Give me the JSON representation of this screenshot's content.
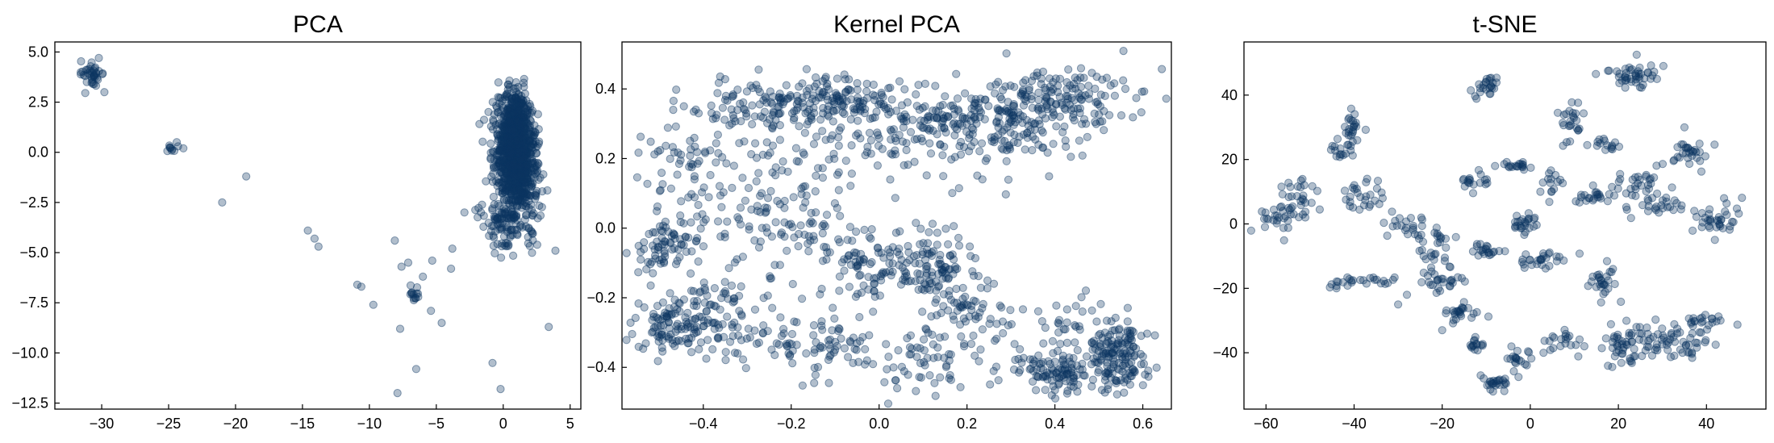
{
  "figure": {
    "point_color": "#0b3561",
    "point_fill_opacity": 0.32,
    "point_stroke_opacity": 0.45
  },
  "chart_data": [
    {
      "type": "scatter",
      "title": "PCA",
      "xlabel": "",
      "ylabel": "",
      "xlim": [
        -33.5,
        5.8
      ],
      "ylim": [
        -12.8,
        5.5
      ],
      "xticks": [
        -30,
        -25,
        -20,
        -15,
        -10,
        -5,
        0,
        5
      ],
      "yticks": [
        -12.5,
        -10.0,
        -7.5,
        -5.0,
        -2.5,
        0.0,
        2.5,
        5.0
      ],
      "grid": false,
      "legend": "none",
      "clusters": [
        {
          "center": [
            0.9,
            -0.3
          ],
          "spread": [
            0.75,
            1.45
          ],
          "count": 900,
          "rotation": 0.22
        },
        {
          "center": [
            1.2,
            1.4
          ],
          "spread": [
            0.55,
            0.85
          ],
          "count": 250,
          "rotation": 0.1
        },
        {
          "center": [
            -0.2,
            -3.3
          ],
          "spread": [
            0.9,
            0.9
          ],
          "count": 90,
          "rotation": 0
        },
        {
          "center": [
            -30.8,
            4.0
          ],
          "spread": [
            0.45,
            0.35
          ],
          "count": 40,
          "rotation": -0.5
        },
        {
          "center": [
            -24.6,
            0.3
          ],
          "spread": [
            0.35,
            0.12
          ],
          "count": 10,
          "rotation": 0
        },
        {
          "center": [
            -6.6,
            -7.1
          ],
          "spread": [
            0.22,
            0.2
          ],
          "count": 14,
          "rotation": 0
        }
      ],
      "points": [
        [
          -29.8,
          3.0
        ],
        [
          -23.9,
          0.2
        ],
        [
          -21.0,
          -2.5
        ],
        [
          -19.2,
          -1.2
        ],
        [
          -14.6,
          -3.9
        ],
        [
          -14.1,
          -4.3
        ],
        [
          -13.8,
          -4.7
        ],
        [
          -10.9,
          -6.6
        ],
        [
          -10.6,
          -6.7
        ],
        [
          -9.7,
          -7.6
        ],
        [
          -8.1,
          -4.4
        ],
        [
          -7.7,
          -8.8
        ],
        [
          -7.6,
          -5.7
        ],
        [
          -7.1,
          -5.5
        ],
        [
          -7.9,
          -12.0
        ],
        [
          -6.5,
          -10.8
        ],
        [
          -6.0,
          -6.2
        ],
        [
          -5.4,
          -7.9
        ],
        [
          -5.3,
          -5.4
        ],
        [
          -4.6,
          -8.5
        ],
        [
          -3.9,
          -5.8
        ],
        [
          -3.8,
          -4.8
        ],
        [
          -0.8,
          -10.5
        ],
        [
          -0.2,
          -11.8
        ],
        [
          3.4,
          -8.7
        ],
        [
          3.9,
          -4.9
        ],
        [
          3.0,
          -1.1
        ],
        [
          2.6,
          1.9
        ],
        [
          -2.9,
          -3.0
        ],
        [
          3.3,
          -1.9
        ]
      ]
    },
    {
      "type": "scatter",
      "title": "Kernel PCA",
      "xlabel": "",
      "ylabel": "",
      "xlim": [
        -0.585,
        0.665
      ],
      "ylim": [
        -0.52,
        0.535
      ],
      "xticks": [
        -0.4,
        -0.2,
        0.0,
        0.2,
        0.4,
        0.6
      ],
      "yticks": [
        -0.4,
        -0.2,
        0.0,
        0.2,
        0.4
      ],
      "grid": false,
      "legend": "none",
      "clusters": [
        {
          "center": [
            -0.23,
            0.35
          ],
          "spread": [
            0.1,
            0.04
          ],
          "count": 130,
          "rotation": 0
        },
        {
          "center": [
            -0.07,
            0.37
          ],
          "spread": [
            0.05,
            0.035
          ],
          "count": 80,
          "rotation": 0
        },
        {
          "center": [
            0.12,
            0.32
          ],
          "spread": [
            0.1,
            0.045
          ],
          "count": 110,
          "rotation": 0
        },
        {
          "center": [
            0.29,
            0.31
          ],
          "spread": [
            0.09,
            0.06
          ],
          "count": 150,
          "rotation": 0
        },
        {
          "center": [
            0.45,
            0.38
          ],
          "spread": [
            0.08,
            0.04
          ],
          "count": 110,
          "rotation": 0
        },
        {
          "center": [
            0.0,
            0.22
          ],
          "spread": [
            0.2,
            0.05
          ],
          "count": 110,
          "rotation": 0
        },
        {
          "center": [
            -0.44,
            0.12
          ],
          "spread": [
            0.05,
            0.1
          ],
          "count": 60,
          "rotation": 0
        },
        {
          "center": [
            -0.5,
            -0.05
          ],
          "spread": [
            0.04,
            0.04
          ],
          "count": 60,
          "rotation": 0
        },
        {
          "center": [
            -0.3,
            0.05
          ],
          "spread": [
            0.1,
            0.09
          ],
          "count": 90,
          "rotation": 0
        },
        {
          "center": [
            -0.15,
            -0.02
          ],
          "spread": [
            0.06,
            0.05
          ],
          "count": 40,
          "rotation": 0
        },
        {
          "center": [
            -0.03,
            -0.14
          ],
          "spread": [
            0.05,
            0.05
          ],
          "count": 60,
          "rotation": 0
        },
        {
          "center": [
            0.12,
            -0.11
          ],
          "spread": [
            0.06,
            0.05
          ],
          "count": 120,
          "rotation": 0
        },
        {
          "center": [
            0.2,
            -0.24
          ],
          "spread": [
            0.07,
            0.05
          ],
          "count": 60,
          "rotation": 0
        },
        {
          "center": [
            -0.35,
            -0.2
          ],
          "spread": [
            0.06,
            0.06
          ],
          "count": 60,
          "rotation": 0
        },
        {
          "center": [
            -0.46,
            -0.28
          ],
          "spread": [
            0.05,
            0.04
          ],
          "count": 110,
          "rotation": 0
        },
        {
          "center": [
            -0.2,
            -0.33
          ],
          "spread": [
            0.14,
            0.04
          ],
          "count": 90,
          "rotation": 0
        },
        {
          "center": [
            0.12,
            -0.38
          ],
          "spread": [
            0.13,
            0.05
          ],
          "count": 80,
          "rotation": 0
        },
        {
          "center": [
            0.4,
            -0.41
          ],
          "spread": [
            0.05,
            0.035
          ],
          "count": 100,
          "rotation": 0
        },
        {
          "center": [
            0.55,
            -0.37
          ],
          "spread": [
            0.035,
            0.05
          ],
          "count": 150,
          "rotation": 0
        },
        {
          "center": [
            0.45,
            -0.28
          ],
          "spread": [
            0.05,
            0.04
          ],
          "count": 30,
          "rotation": 0
        }
      ],
      "points": []
    },
    {
      "type": "scatter",
      "title": "t-SNE",
      "xlabel": "",
      "ylabel": "",
      "xlim": [
        -65,
        53.5
      ],
      "ylim": [
        -57.5,
        56.5
      ],
      "xticks": [
        -60,
        -40,
        -20,
        0,
        20,
        40
      ],
      "yticks": [
        -40,
        -20,
        0,
        20,
        40
      ],
      "grid": false,
      "legend": "none",
      "clusters": [
        {
          "center": [
            -57,
            2
          ],
          "spread": [
            2.5,
            2.5
          ],
          "count": 30,
          "rotation": 0
        },
        {
          "center": [
            -53,
            8
          ],
          "spread": [
            1.8,
            3.5
          ],
          "count": 25,
          "rotation": 0
        },
        {
          "center": [
            -41,
            29
          ],
          "spread": [
            1.5,
            2.5
          ],
          "count": 25,
          "rotation": 0
        },
        {
          "center": [
            -43,
            23
          ],
          "spread": [
            1.2,
            1.5
          ],
          "count": 15,
          "rotation": 0
        },
        {
          "center": [
            -38,
            8
          ],
          "spread": [
            2.5,
            3.0
          ],
          "count": 28,
          "rotation": 0
        },
        {
          "center": [
            -42,
            -18
          ],
          "spread": [
            2.0,
            1.0
          ],
          "count": 15,
          "rotation": 0
        },
        {
          "center": [
            -20,
            -18
          ],
          "spread": [
            2.5,
            2.5
          ],
          "count": 30,
          "rotation": 0
        },
        {
          "center": [
            -16,
            -28
          ],
          "spread": [
            2.2,
            2.5
          ],
          "count": 25,
          "rotation": 0
        },
        {
          "center": [
            -22,
            -5
          ],
          "spread": [
            2.5,
            3.0
          ],
          "count": 25,
          "rotation": 0
        },
        {
          "center": [
            -10,
            -8
          ],
          "spread": [
            2.0,
            1.5
          ],
          "count": 20,
          "rotation": 0
        },
        {
          "center": [
            -10,
            42
          ],
          "spread": [
            1.5,
            2.5
          ],
          "count": 25,
          "rotation": 0
        },
        {
          "center": [
            -13,
            13
          ],
          "spread": [
            1.8,
            1.5
          ],
          "count": 18,
          "rotation": 0
        },
        {
          "center": [
            -3,
            18
          ],
          "spread": [
            2.0,
            1.0
          ],
          "count": 18,
          "rotation": 0
        },
        {
          "center": [
            -28,
            -2
          ],
          "spread": [
            2.5,
            2.0
          ],
          "count": 20,
          "rotation": 0
        },
        {
          "center": [
            -33,
            -18
          ],
          "spread": [
            2.0,
            1.0
          ],
          "count": 10,
          "rotation": 0
        },
        {
          "center": [
            -13,
            -37
          ],
          "spread": [
            1.5,
            1.5
          ],
          "count": 15,
          "rotation": 0
        },
        {
          "center": [
            -8,
            -49
          ],
          "spread": [
            2.0,
            1.5
          ],
          "count": 25,
          "rotation": 0
        },
        {
          "center": [
            -3,
            -42
          ],
          "spread": [
            1.5,
            2.5
          ],
          "count": 20,
          "rotation": 0
        },
        {
          "center": [
            -1,
            0
          ],
          "spread": [
            1.5,
            1.5
          ],
          "count": 25,
          "rotation": 0
        },
        {
          "center": [
            2,
            -11
          ],
          "spread": [
            3.5,
            1.2
          ],
          "count": 28,
          "rotation": 0
        },
        {
          "center": [
            9,
            32
          ],
          "spread": [
            1.5,
            3.5
          ],
          "count": 25,
          "rotation": 0
        },
        {
          "center": [
            17,
            25
          ],
          "spread": [
            2.0,
            1.0
          ],
          "count": 15,
          "rotation": 0
        },
        {
          "center": [
            14,
            9
          ],
          "spread": [
            3.0,
            1.5
          ],
          "count": 22,
          "rotation": 0
        },
        {
          "center": [
            17,
            -18
          ],
          "spread": [
            1.8,
            3.0
          ],
          "count": 28,
          "rotation": 0
        },
        {
          "center": [
            21,
            -37
          ],
          "spread": [
            4.0,
            3.0
          ],
          "count": 55,
          "rotation": 0
        },
        {
          "center": [
            33,
            -36
          ],
          "spread": [
            4.5,
            3.0
          ],
          "count": 55,
          "rotation": 0
        },
        {
          "center": [
            40,
            -30
          ],
          "spread": [
            3.0,
            1.0
          ],
          "count": 18,
          "rotation": 0
        },
        {
          "center": [
            8,
            -37
          ],
          "spread": [
            3.0,
            1.5
          ],
          "count": 18,
          "rotation": 0
        },
        {
          "center": [
            24,
            46
          ],
          "spread": [
            3.5,
            2.5
          ],
          "count": 45,
          "rotation": 0
        },
        {
          "center": [
            36,
            22
          ],
          "spread": [
            2.5,
            2.5
          ],
          "count": 30,
          "rotation": 0
        },
        {
          "center": [
            24,
            12
          ],
          "spread": [
            3.0,
            3.5
          ],
          "count": 35,
          "rotation": 0
        },
        {
          "center": [
            31,
            5
          ],
          "spread": [
            3.0,
            1.5
          ],
          "count": 20,
          "rotation": 0
        },
        {
          "center": [
            43,
            2
          ],
          "spread": [
            3.5,
            2.5
          ],
          "count": 35,
          "rotation": 0
        },
        {
          "center": [
            5,
            12
          ],
          "spread": [
            1.5,
            2.5
          ],
          "count": 15,
          "rotation": 0
        }
      ],
      "points": [
        [
          35,
          30
        ],
        [
          44,
          8
        ],
        [
          -20,
          -33
        ],
        [
          -44,
          -20
        ],
        [
          -8,
          18
        ],
        [
          3,
          -40
        ],
        [
          -28,
          -22
        ],
        [
          -30,
          -25
        ]
      ]
    }
  ]
}
